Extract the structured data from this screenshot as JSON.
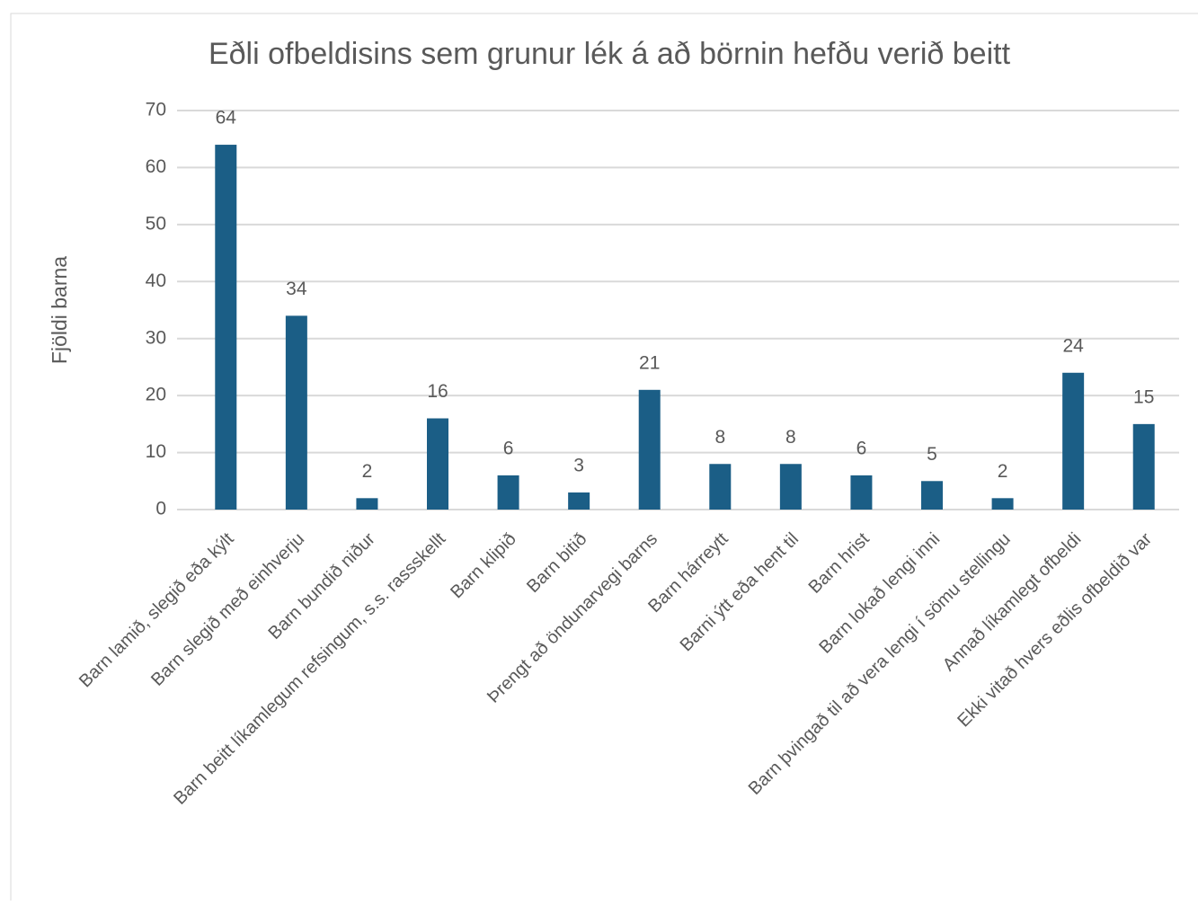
{
  "chart_data": {
    "type": "bar",
    "title": "Eðli ofbeldisins sem grunur lék á að börnin hefðu verið beitt",
    "y_label": "Fjöldi barna",
    "categories": [
      "Barn lamið, slegið eða kýlt",
      "Barn slegið með einhverju",
      "Barn bundið niður",
      "Barn beitt líkamlegum refsingum, s.s. rassskellt",
      "Barn klipið",
      "Barn bitið",
      "Þrengt að öndunarvegi barns",
      "Barn hárreytt",
      "Barni ýtt eða hent til",
      "Barn hrist",
      "Barn lokað lengi inni",
      "Barn þvingað til að vera lengi í sömu stellingu",
      "Annað líkamlegt ofbeldi",
      "Ekki vitað hvers eðlis ofbeldið var"
    ],
    "values": [
      64,
      34,
      2,
      16,
      6,
      3,
      21,
      8,
      8,
      6,
      5,
      2,
      24,
      15
    ],
    "color": "#1b5e86",
    "ylim": [
      0,
      70
    ],
    "yticks": [
      0,
      10,
      20,
      30,
      40,
      50,
      60,
      70
    ],
    "grid": true
  }
}
